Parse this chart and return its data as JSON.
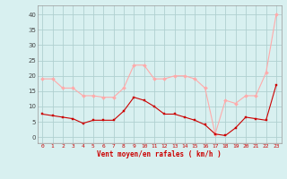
{
  "hours": [
    0,
    1,
    2,
    3,
    4,
    5,
    6,
    7,
    8,
    9,
    10,
    11,
    12,
    13,
    14,
    15,
    16,
    17,
    18,
    19,
    20,
    21,
    22,
    23
  ],
  "wind_avg": [
    7.5,
    7,
    6.5,
    6,
    4.5,
    5.5,
    5.5,
    5.5,
    8.5,
    13,
    12,
    10,
    7.5,
    7.5,
    6.5,
    5.5,
    4,
    1,
    0.5,
    3,
    6.5,
    6,
    5.5,
    17
  ],
  "wind_gust": [
    19,
    19,
    16,
    16,
    13.5,
    13.5,
    13,
    13,
    16,
    23.5,
    23.5,
    19,
    19,
    20,
    20,
    19,
    16,
    1,
    12,
    11,
    13.5,
    13.5,
    21,
    40
  ],
  "avg_color": "#cc0000",
  "gust_color": "#ffaaaa",
  "bg_color": "#d8f0f0",
  "grid_color": "#b0d0d0",
  "xlabel": "Vent moyen/en rafales ( km/h )",
  "ylim": [
    -2,
    43
  ],
  "xlim": [
    -0.5,
    23.5
  ],
  "yticks": [
    0,
    5,
    10,
    15,
    20,
    25,
    30,
    35,
    40
  ],
  "xticks": [
    0,
    1,
    2,
    3,
    4,
    5,
    6,
    7,
    8,
    9,
    10,
    11,
    12,
    13,
    14,
    15,
    16,
    17,
    18,
    19,
    20,
    21,
    22,
    23
  ],
  "tick_color": "#cc0000",
  "label_color": "#cc0000"
}
